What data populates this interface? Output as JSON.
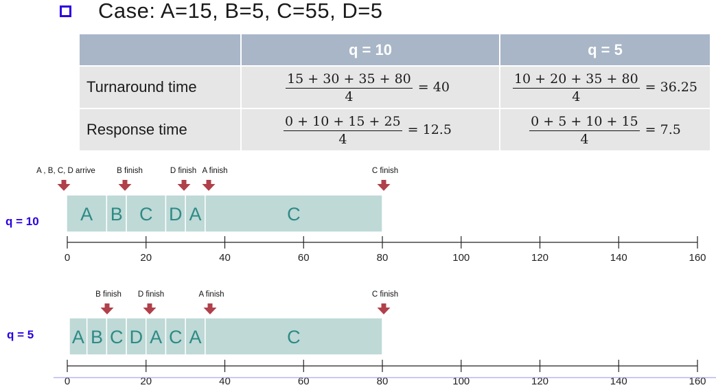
{
  "title": "Case: A=15, B=5, C=55, D=5",
  "table": {
    "headers": [
      "",
      "q = 10",
      "q = 5"
    ],
    "rows": [
      {
        "label": "Turnaround time",
        "q10": {
          "numerator": "15 + 30 + 35 + 80",
          "denominator": "4",
          "result": "= 40"
        },
        "q5": {
          "numerator": "10 + 20 + 35 + 80",
          "denominator": "4",
          "result": "= 36.25"
        }
      },
      {
        "label": "Response time",
        "q10": {
          "numerator": "0 + 10 + 15 + 25",
          "denominator": "4",
          "result": "= 12.5"
        },
        "q5": {
          "numerator": "0 + 5 + 10 + 15",
          "denominator": "4",
          "result": "= 7.5"
        }
      }
    ]
  },
  "timelines": [
    {
      "label": "q = 10",
      "segments": [
        {
          "name": "A",
          "start": 0,
          "end": 10
        },
        {
          "name": "B",
          "start": 10,
          "end": 15
        },
        {
          "name": "C",
          "start": 15,
          "end": 25
        },
        {
          "name": "D",
          "start": 25,
          "end": 30
        },
        {
          "name": "A",
          "start": 30,
          "end": 35
        },
        {
          "name": "C",
          "start": 35,
          "end": 80
        }
      ],
      "events": [
        {
          "text": "A , B, C, D arrive",
          "time": 0
        },
        {
          "text": "B finish",
          "time": 15
        },
        {
          "text": "D finish",
          "time": 30
        },
        {
          "text": "A finish",
          "time": 35
        },
        {
          "text": "C finish",
          "time": 80
        }
      ]
    },
    {
      "label": "q = 5",
      "segments": [
        {
          "name": "A",
          "start": 0,
          "end": 5
        },
        {
          "name": "B",
          "start": 5,
          "end": 10
        },
        {
          "name": "C",
          "start": 10,
          "end": 15
        },
        {
          "name": "D",
          "start": 15,
          "end": 20
        },
        {
          "name": "A",
          "start": 20,
          "end": 25
        },
        {
          "name": "C",
          "start": 25,
          "end": 30
        },
        {
          "name": "A",
          "start": 30,
          "end": 35
        },
        {
          "name": "C",
          "start": 35,
          "end": 80
        }
      ],
      "events": [
        {
          "text": "B finish",
          "time": 10
        },
        {
          "text": "D finish",
          "time": 20
        },
        {
          "text": "A finish",
          "time": 35
        },
        {
          "text": "C finish",
          "time": 80
        }
      ]
    }
  ],
  "axis": {
    "ticks": [
      0,
      20,
      40,
      60,
      80,
      100,
      120,
      140,
      160
    ]
  },
  "colors": {
    "segment_fill": "#bed9d6",
    "segment_text": "#2e8a85",
    "arrow": "#b0404a",
    "label": "#2a00e0",
    "bullet": "#2a00e0",
    "header_bg": "#a8b6c7",
    "cell_bg": "#e6e6e6",
    "bottom_line": "#a9a6ee"
  }
}
